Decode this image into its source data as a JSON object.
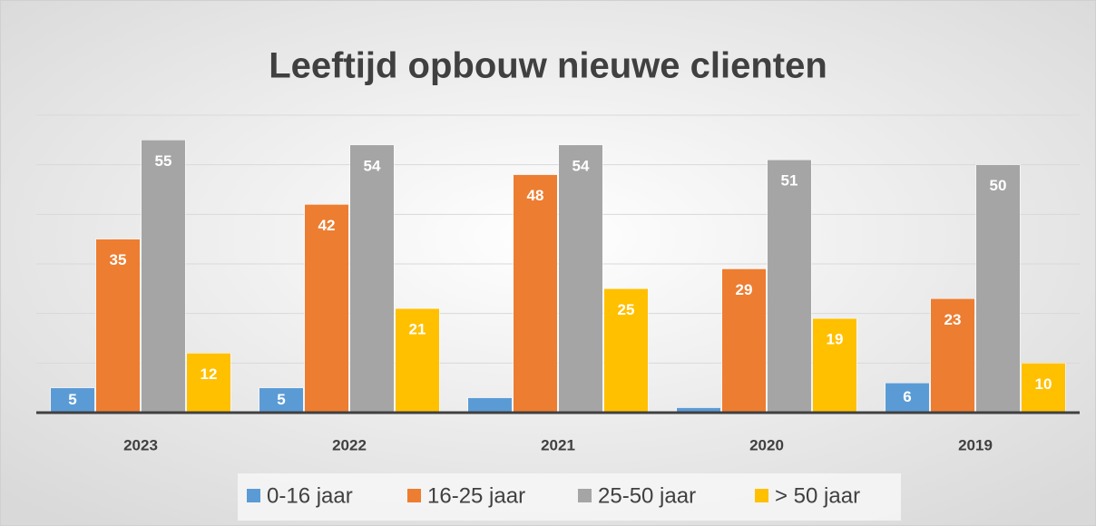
{
  "chart_data": {
    "type": "bar",
    "title": "Leeftijd opbouw nieuwe clienten",
    "categories": [
      "2023",
      "2022",
      "2021",
      "2020",
      "2019"
    ],
    "series": [
      {
        "name": "0-16 jaar",
        "color": "#5b9bd5",
        "values": [
          5,
          5,
          3,
          1,
          6
        ],
        "value_labels": [
          5,
          5,
          null,
          null,
          6
        ]
      },
      {
        "name": "16-25 jaar",
        "color": "#ed7d31",
        "values": [
          35,
          42,
          48,
          29,
          23
        ]
      },
      {
        "name": "25-50 jaar",
        "color": "#a5a5a5",
        "values": [
          55,
          54,
          54,
          51,
          50
        ]
      },
      {
        "name": "> 50 jaar",
        "color": "#ffc000",
        "values": [
          12,
          21,
          25,
          19,
          10
        ]
      }
    ],
    "ylim": [
      0,
      60
    ],
    "yticks": [
      0,
      10,
      20,
      30,
      40,
      50,
      60
    ],
    "grid": true,
    "legend": "bottom"
  }
}
